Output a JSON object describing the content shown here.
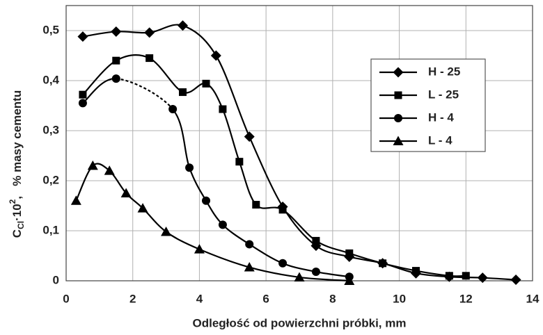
{
  "chart_data": {
    "type": "line",
    "x_label": "Odległość od powierzchni próbki,  mm",
    "y_label": {
      "parts": [
        "C",
        "Cl",
        "·10",
        "2",
        ",   % masy cementu"
      ]
    },
    "xlim": [
      0,
      14
    ],
    "xticks": [
      0,
      2,
      4,
      6,
      8,
      10,
      12,
      14
    ],
    "ylim": [
      0,
      0.55
    ],
    "yticks": [
      0,
      {
        "value": 0.1,
        "label": "0,1"
      },
      {
        "value": 0.2,
        "label": "0,2"
      },
      {
        "value": 0.3,
        "label": "0,3"
      },
      {
        "value": 0.4,
        "label": "0,4"
      },
      {
        "value": 0.5,
        "label": "0,5"
      }
    ],
    "grid": true,
    "legend": "right",
    "series": [
      {
        "name": "H - 25",
        "color": "#000000",
        "marker": "diamond",
        "x": [
          0.5,
          1.5,
          2.5,
          3.5,
          4.5,
          5.5,
          6.5,
          7.5,
          8.5,
          9.5,
          10.5,
          11.5,
          12.5,
          13.5
        ],
        "values": [
          0.488,
          0.498,
          0.496,
          0.51,
          0.45,
          0.288,
          0.148,
          0.07,
          0.048,
          0.035,
          0.015,
          0.008,
          0.006,
          0.002
        ]
      },
      {
        "name": "L - 25",
        "color": "#000000",
        "marker": "square",
        "x": [
          0.5,
          1.5,
          2.5,
          3.5,
          4.2,
          4.7,
          5.2,
          5.7,
          6.5,
          7.5,
          8.5,
          9.5,
          10.5,
          11.5,
          12
        ],
        "values": [
          0.372,
          0.44,
          0.445,
          0.377,
          0.394,
          0.343,
          0.238,
          0.152,
          0.142,
          0.08,
          0.055,
          0.035,
          0.02,
          0.01,
          0.01
        ]
      },
      {
        "name": "H - 4",
        "color": "#000000",
        "marker": "circle",
        "dashed_segments": [
          1
        ],
        "x": [
          0.5,
          1.5,
          3.2,
          3.7,
          4.2,
          4.7,
          5.5,
          6.5,
          7.5,
          8.5
        ],
        "values": [
          0.355,
          0.404,
          0.343,
          0.226,
          0.16,
          0.112,
          0.073,
          0.035,
          0.018,
          0.008
        ]
      },
      {
        "name": "L - 4",
        "color": "#000000",
        "marker": "triangle",
        "x": [
          0.3,
          0.8,
          1.3,
          1.8,
          2.3,
          3,
          4,
          5.5,
          7,
          8.5
        ],
        "values": [
          0.16,
          0.23,
          0.22,
          0.175,
          0.145,
          0.098,
          0.063,
          0.027,
          0.007,
          0
        ]
      }
    ]
  }
}
